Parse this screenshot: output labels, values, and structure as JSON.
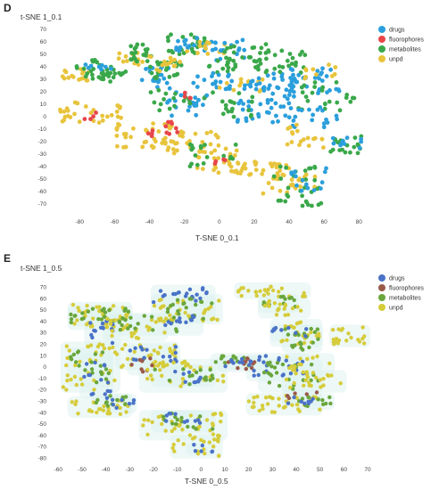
{
  "panels": [
    {
      "letter": "D"
    },
    {
      "letter": "E"
    }
  ],
  "chart_data": [
    {
      "type": "scatter",
      "title": "",
      "xlabel": "T-SNE 0_0.1",
      "ylabel": "t-SNE 1_0.1",
      "xlim": [
        -95,
        85
      ],
      "ylim": [
        -78,
        72
      ],
      "xticks": [
        -80,
        -60,
        -40,
        -20,
        0,
        20,
        40,
        60,
        80
      ],
      "yticks": [
        70,
        60,
        50,
        40,
        30,
        20,
        10,
        0,
        -10,
        -20,
        -30,
        -40,
        -50,
        -60,
        -70
      ],
      "grid": false,
      "legend_position": "top-right",
      "series": [
        {
          "name": "drugs",
          "color": "#2b9fdc"
        },
        {
          "name": "fluorophores",
          "color": "#e8464a"
        },
        {
          "name": "metabolites",
          "color": "#3aa84a"
        },
        {
          "name": "unpd",
          "color": "#e8c43c"
        }
      ],
      "clusters": [
        {
          "series": "unpd",
          "x": [
            -92,
            -72
          ],
          "y": [
            27,
            38
          ],
          "n": 18
        },
        {
          "series": "metabolites",
          "x": [
            -82,
            -60
          ],
          "y": [
            30,
            46
          ],
          "n": 26
        },
        {
          "series": "drugs",
          "x": [
            -78,
            -62
          ],
          "y": [
            35,
            42
          ],
          "n": 8
        },
        {
          "series": "metabolites",
          "x": [
            -68,
            -50
          ],
          "y": [
            28,
            36
          ],
          "n": 12
        },
        {
          "series": "unpd",
          "x": [
            -60,
            -40
          ],
          "y": [
            40,
            52
          ],
          "n": 14
        },
        {
          "series": "metabolites",
          "x": [
            -52,
            -38
          ],
          "y": [
            44,
            58
          ],
          "n": 20
        },
        {
          "series": "drugs",
          "x": [
            -45,
            -28
          ],
          "y": [
            22,
            40
          ],
          "n": 20
        },
        {
          "series": "metabolites",
          "x": [
            -40,
            -20
          ],
          "y": [
            30,
            45
          ],
          "n": 22
        },
        {
          "series": "unpd",
          "x": [
            -40,
            -22
          ],
          "y": [
            35,
            48
          ],
          "n": 14
        },
        {
          "series": "metabolites",
          "x": [
            -30,
            -8
          ],
          "y": [
            50,
            66
          ],
          "n": 26
        },
        {
          "series": "drugs",
          "x": [
            -25,
            0
          ],
          "y": [
            52,
            64
          ],
          "n": 18
        },
        {
          "series": "unpd",
          "x": [
            -20,
            5
          ],
          "y": [
            50,
            60
          ],
          "n": 12
        },
        {
          "series": "drugs",
          "x": [
            -5,
            15
          ],
          "y": [
            45,
            62
          ],
          "n": 18
        },
        {
          "series": "metabolites",
          "x": [
            -10,
            10
          ],
          "y": [
            35,
            48
          ],
          "n": 14
        },
        {
          "series": "drugs",
          "x": [
            -15,
            20
          ],
          "y": [
            22,
            35
          ],
          "n": 24
        },
        {
          "series": "metabolites",
          "x": [
            0,
            30
          ],
          "y": [
            40,
            58
          ],
          "n": 22
        },
        {
          "series": "unpd",
          "x": [
            0,
            25
          ],
          "y": [
            20,
            30
          ],
          "n": 12
        },
        {
          "series": "drugs",
          "x": [
            15,
            45
          ],
          "y": [
            15,
            35
          ],
          "n": 34
        },
        {
          "series": "metabolites",
          "x": [
            20,
            50
          ],
          "y": [
            35,
            55
          ],
          "n": 26
        },
        {
          "series": "drugs",
          "x": [
            40,
            72
          ],
          "y": [
            18,
            40
          ],
          "n": 30
        },
        {
          "series": "metabolites",
          "x": [
            45,
            78
          ],
          "y": [
            5,
            30
          ],
          "n": 24
        },
        {
          "series": "unpd",
          "x": [
            45,
            68
          ],
          "y": [
            30,
            42
          ],
          "n": 10
        },
        {
          "series": "drugs",
          "x": [
            10,
            40
          ],
          "y": [
            -5,
            15
          ],
          "n": 30
        },
        {
          "series": "metabolites",
          "x": [
            -10,
            20
          ],
          "y": [
            -2,
            20
          ],
          "n": 20
        },
        {
          "series": "drugs",
          "x": [
            -30,
            -5
          ],
          "y": [
            0,
            20
          ],
          "n": 22
        },
        {
          "series": "metabolites",
          "x": [
            -40,
            -15
          ],
          "y": [
            5,
            22
          ],
          "n": 16
        },
        {
          "series": "drugs",
          "x": [
            40,
            70
          ],
          "y": [
            -10,
            8
          ],
          "n": 20
        },
        {
          "series": "metabolites",
          "x": [
            60,
            82
          ],
          "y": [
            -30,
            -15
          ],
          "n": 20
        },
        {
          "series": "drugs",
          "x": [
            62,
            82
          ],
          "y": [
            -26,
            -16
          ],
          "n": 10
        },
        {
          "series": "unpd",
          "x": [
            -92,
            -55
          ],
          "y": [
            -5,
            12
          ],
          "n": 30
        },
        {
          "series": "unpd",
          "x": [
            -60,
            -25
          ],
          "y": [
            -25,
            -5
          ],
          "n": 40
        },
        {
          "series": "unpd",
          "x": [
            -30,
            0
          ],
          "y": [
            -30,
            -12
          ],
          "n": 30
        },
        {
          "series": "unpd",
          "x": [
            -15,
            15
          ],
          "y": [
            -45,
            -25
          ],
          "n": 30
        },
        {
          "series": "unpd",
          "x": [
            10,
            40
          ],
          "y": [
            -50,
            -35
          ],
          "n": 26
        },
        {
          "series": "unpd",
          "x": [
            25,
            55
          ],
          "y": [
            -62,
            -45
          ],
          "n": 22
        },
        {
          "series": "unpd",
          "x": [
            35,
            60
          ],
          "y": [
            -25,
            -5
          ],
          "n": 18
        },
        {
          "series": "metabolites",
          "x": [
            -20,
            10
          ],
          "y": [
            -40,
            -20
          ],
          "n": 18
        },
        {
          "series": "metabolites",
          "x": [
            30,
            60
          ],
          "y": [
            -72,
            -40
          ],
          "n": 32
        },
        {
          "series": "drugs",
          "x": [
            40,
            62
          ],
          "y": [
            -60,
            -40
          ],
          "n": 14
        },
        {
          "series": "fluorophores",
          "x": [
            -32,
            -22
          ],
          "y": [
            -14,
            -4
          ],
          "n": 8
        },
        {
          "series": "fluorophores",
          "x": [
            -78,
            -70
          ],
          "y": [
            -2,
            4
          ],
          "n": 4
        },
        {
          "series": "fluorophores",
          "x": [
            -20,
            -12
          ],
          "y": [
            12,
            20
          ],
          "n": 4
        },
        {
          "series": "fluorophores",
          "x": [
            -4,
            6
          ],
          "y": [
            -40,
            -34
          ],
          "n": 4
        },
        {
          "series": "fluorophores",
          "x": [
            -48,
            -38
          ],
          "y": [
            -18,
            -10
          ],
          "n": 4
        }
      ]
    },
    {
      "type": "scatter",
      "title": "",
      "xlabel": "T-SNE 0_0.5",
      "ylabel": "t-SNE 1_0.5",
      "xlim": [
        -62,
        70
      ],
      "ylim": [
        -82,
        72
      ],
      "xticks": [
        -60,
        -50,
        -40,
        -30,
        -20,
        -10,
        0,
        10,
        20,
        30,
        40,
        50,
        60,
        70
      ],
      "yticks": [
        70,
        60,
        50,
        40,
        30,
        20,
        10,
        0,
        -10,
        -20,
        -30,
        -40,
        -50,
        -60,
        -70,
        -80
      ],
      "grid": false,
      "legend_position": "top-right",
      "series": [
        {
          "name": "drugs",
          "color": "#4a72c8"
        },
        {
          "name": "fluorophores",
          "color": "#9a5a4a"
        },
        {
          "name": "metabolites",
          "color": "#6aa63c"
        },
        {
          "name": "unpd",
          "color": "#d6cc3a"
        }
      ],
      "clusters": [
        {
          "series": "unpd",
          "x": [
            -55,
            -30
          ],
          "y": [
            35,
            55
          ],
          "n": 40
        },
        {
          "series": "metabolites",
          "x": [
            -55,
            -30
          ],
          "y": [
            38,
            52
          ],
          "n": 24
        },
        {
          "series": "drugs",
          "x": [
            -48,
            -35
          ],
          "y": [
            20,
            45
          ],
          "n": 14
        },
        {
          "series": "unpd",
          "x": [
            -40,
            -15
          ],
          "y": [
            25,
            45
          ],
          "n": 30
        },
        {
          "series": "metabolites",
          "x": [
            -35,
            -10
          ],
          "y": [
            30,
            45
          ],
          "n": 20
        },
        {
          "series": "drugs",
          "x": [
            -20,
            5
          ],
          "y": [
            55,
            70
          ],
          "n": 20
        },
        {
          "series": "unpd",
          "x": [
            -20,
            8
          ],
          "y": [
            40,
            62
          ],
          "n": 30
        },
        {
          "series": "metabolites",
          "x": [
            -15,
            5
          ],
          "y": [
            42,
            60
          ],
          "n": 20
        },
        {
          "series": "drugs",
          "x": [
            -15,
            0
          ],
          "y": [
            30,
            45
          ],
          "n": 12
        },
        {
          "series": "unpd",
          "x": [
            -58,
            -35
          ],
          "y": [
            -20,
            20
          ],
          "n": 40
        },
        {
          "series": "metabolites",
          "x": [
            -55,
            -38
          ],
          "y": [
            -15,
            15
          ],
          "n": 20
        },
        {
          "series": "drugs",
          "x": [
            -50,
            -38
          ],
          "y": [
            -25,
            10
          ],
          "n": 14
        },
        {
          "series": "unpd",
          "x": [
            -35,
            -10
          ],
          "y": [
            0,
            20
          ],
          "n": 30
        },
        {
          "series": "drugs",
          "x": [
            -30,
            -10
          ],
          "y": [
            5,
            18
          ],
          "n": 16
        },
        {
          "series": "fluorophores",
          "x": [
            -30,
            -20
          ],
          "y": [
            -5,
            8
          ],
          "n": 8
        },
        {
          "series": "unpd",
          "x": [
            -25,
            10
          ],
          "y": [
            -20,
            5
          ],
          "n": 30
        },
        {
          "series": "metabolites",
          "x": [
            -20,
            5
          ],
          "y": [
            -15,
            0
          ],
          "n": 16
        },
        {
          "series": "drugs",
          "x": [
            -12,
            0
          ],
          "y": [
            -15,
            0
          ],
          "n": 10
        },
        {
          "series": "unpd",
          "x": [
            -55,
            -30
          ],
          "y": [
            -42,
            -28
          ],
          "n": 26
        },
        {
          "series": "metabolites",
          "x": [
            -45,
            -30
          ],
          "y": [
            -35,
            -25
          ],
          "n": 12
        },
        {
          "series": "drugs",
          "x": [
            -40,
            -28
          ],
          "y": [
            -38,
            -26
          ],
          "n": 8
        },
        {
          "series": "unpd",
          "x": [
            -25,
            10
          ],
          "y": [
            -62,
            -40
          ],
          "n": 40
        },
        {
          "series": "metabolites",
          "x": [
            -20,
            5
          ],
          "y": [
            -55,
            -40
          ],
          "n": 14
        },
        {
          "series": "drugs",
          "x": [
            -15,
            0
          ],
          "y": [
            -50,
            -40
          ],
          "n": 10
        },
        {
          "series": "unpd",
          "x": [
            -12,
            8
          ],
          "y": [
            -78,
            -62
          ],
          "n": 20
        },
        {
          "series": "drugs",
          "x": [
            -5,
            5
          ],
          "y": [
            -75,
            -68
          ],
          "n": 6
        },
        {
          "series": "metabolites",
          "x": [
            5,
            20
          ],
          "y": [
            0,
            10
          ],
          "n": 14
        },
        {
          "series": "fluorophores",
          "x": [
            8,
            25
          ],
          "y": [
            -2,
            8
          ],
          "n": 12
        },
        {
          "series": "drugs",
          "x": [
            10,
            28
          ],
          "y": [
            0,
            8
          ],
          "n": 12
        },
        {
          "series": "unpd",
          "x": [
            15,
            45
          ],
          "y": [
            62,
            72
          ],
          "n": 24
        },
        {
          "series": "metabolites",
          "x": [
            25,
            40
          ],
          "y": [
            50,
            62
          ],
          "n": 12
        },
        {
          "series": "unpd",
          "x": [
            25,
            45
          ],
          "y": [
            45,
            58
          ],
          "n": 18
        },
        {
          "series": "unpd",
          "x": [
            30,
            50
          ],
          "y": [
            20,
            40
          ],
          "n": 24
        },
        {
          "series": "metabolites",
          "x": [
            35,
            50
          ],
          "y": [
            15,
            35
          ],
          "n": 20
        },
        {
          "series": "drugs",
          "x": [
            30,
            45
          ],
          "y": [
            25,
            35
          ],
          "n": 10
        },
        {
          "series": "unpd",
          "x": [
            55,
            70
          ],
          "y": [
            20,
            35
          ],
          "n": 20
        },
        {
          "series": "drugs",
          "x": [
            20,
            45
          ],
          "y": [
            -10,
            10
          ],
          "n": 20
        },
        {
          "series": "metabolites",
          "x": [
            25,
            50
          ],
          "y": [
            -20,
            5
          ],
          "n": 24
        },
        {
          "series": "unpd",
          "x": [
            35,
            55
          ],
          "y": [
            -5,
            10
          ],
          "n": 16
        },
        {
          "series": "unpd",
          "x": [
            35,
            60
          ],
          "y": [
            -20,
            -5
          ],
          "n": 20
        },
        {
          "series": "unpd",
          "x": [
            20,
            50
          ],
          "y": [
            -40,
            -25
          ],
          "n": 36
        },
        {
          "series": "metabolites",
          "x": [
            40,
            55
          ],
          "y": [
            -35,
            -25
          ],
          "n": 12
        },
        {
          "series": "drugs",
          "x": [
            35,
            50
          ],
          "y": [
            -32,
            -26
          ],
          "n": 8
        },
        {
          "series": "fluorophores",
          "x": [
            35,
            50
          ],
          "y": [
            -28,
            -22
          ],
          "n": 6
        }
      ]
    }
  ]
}
